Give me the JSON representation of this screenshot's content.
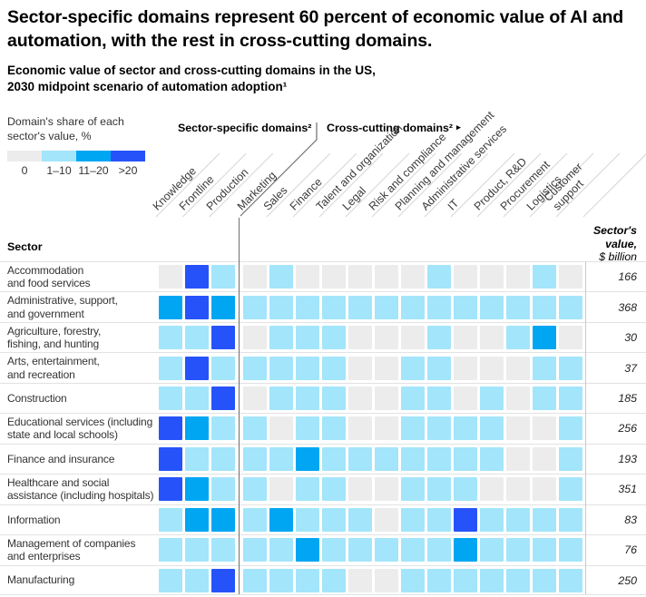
{
  "page": {
    "title_line1": "Sector-specific domains represent 60 percent of economic value of AI and",
    "title_line2": "automation, with the rest in cross-cutting domains.",
    "subtitle_line1": "Economic value of sector and cross-cutting domains in the US,",
    "subtitle_line2": "2030 midpoint scenario of automation adoption¹"
  },
  "legend": {
    "title": "Domain's share of each sector's value, %",
    "items": [
      {
        "label": "0",
        "color": "#ececec"
      },
      {
        "label": "1–10",
        "color": "#a3e5fb"
      },
      {
        "label": "11–20",
        "color": "#00a6f2"
      },
      {
        "label": ">20",
        "color": "#2653f9"
      }
    ]
  },
  "header": {
    "sector_specific_label": "Sector-specific domains²",
    "cross_cutting_label": "Cross-cutting domains²",
    "arrow": "▸"
  },
  "table_headers": {
    "sector": "Sector",
    "value_line1": "Sector's",
    "value_line2": "value,",
    "value_line3": "$ billion"
  },
  "chart_data": {
    "type": "heatmap",
    "title": "Economic value of sector and cross-cutting domains in the US, 2030 midpoint scenario of automation adoption",
    "value_buckets": [
      "0",
      "1–10",
      "11–20",
      ">20"
    ],
    "bucket_colors": [
      "#ececec",
      "#a3e5fb",
      "#00a6f2",
      "#2653f9"
    ],
    "column_groups": [
      {
        "name": "Sector-specific domains",
        "columns": [
          0,
          1,
          2
        ]
      },
      {
        "name": "Cross-cutting domains",
        "columns": [
          3,
          4,
          5,
          6,
          7,
          8,
          9,
          10,
          11,
          12,
          13,
          14,
          15
        ]
      }
    ],
    "x_categories": [
      "Knowledge",
      "Frontline",
      "Production",
      "Marketing",
      "Sales",
      "Finance",
      "Talent and organization",
      "Legal",
      "Risk and compliance",
      "Planning and management",
      "Administrative services",
      "IT",
      "Product, R&D",
      "Procurement",
      "Logistics",
      "Customer support"
    ],
    "value_axis_label": "Sector's value, $ billion",
    "rows": [
      {
        "sector": "Accommodation and food services",
        "label": "Accommodation\nand food services",
        "value": 166,
        "cells": [
          0,
          3,
          1,
          0,
          1,
          0,
          0,
          0,
          0,
          0,
          1,
          0,
          0,
          0,
          1,
          0
        ]
      },
      {
        "sector": "Administrative, support, and government",
        "label": "Administrative, support,\nand government",
        "value": 368,
        "cells": [
          2,
          3,
          2,
          1,
          1,
          1,
          1,
          1,
          1,
          1,
          1,
          1,
          1,
          1,
          1,
          1
        ]
      },
      {
        "sector": "Agriculture, forestry, fishing, and hunting",
        "label": "Agriculture, forestry,\nfishing, and hunting",
        "value": 30,
        "cells": [
          1,
          1,
          3,
          0,
          1,
          1,
          1,
          0,
          0,
          0,
          1,
          0,
          0,
          1,
          2,
          0
        ]
      },
      {
        "sector": "Arts, entertainment, and recreation",
        "label": "Arts, entertainment,\nand recreation",
        "value": 37,
        "cells": [
          1,
          3,
          1,
          1,
          1,
          1,
          1,
          0,
          0,
          1,
          1,
          0,
          0,
          0,
          1,
          1
        ]
      },
      {
        "sector": "Construction",
        "label": "Construction",
        "value": 185,
        "cells": [
          1,
          1,
          3,
          0,
          1,
          1,
          1,
          0,
          0,
          1,
          1,
          0,
          1,
          0,
          1,
          1
        ]
      },
      {
        "sector": "Educational services (including state and local schools)",
        "label": "Educational services (including\nstate and local schools)",
        "value": 256,
        "cells": [
          3,
          2,
          1,
          1,
          0,
          1,
          1,
          0,
          0,
          1,
          1,
          1,
          1,
          0,
          0,
          1
        ]
      },
      {
        "sector": "Finance and insurance",
        "label": "Finance and insurance",
        "value": 193,
        "cells": [
          3,
          1,
          1,
          1,
          1,
          2,
          1,
          1,
          1,
          1,
          1,
          1,
          1,
          0,
          0,
          1
        ]
      },
      {
        "sector": "Healthcare and social assistance (including hospitals)",
        "label": "Healthcare and social\nassistance (including hospitals)",
        "value": 351,
        "cells": [
          3,
          2,
          1,
          1,
          0,
          1,
          1,
          0,
          0,
          1,
          1,
          1,
          0,
          0,
          0,
          1
        ]
      },
      {
        "sector": "Information",
        "label": "Information",
        "value": 83,
        "cells": [
          1,
          2,
          2,
          1,
          2,
          1,
          1,
          1,
          0,
          1,
          1,
          3,
          1,
          1,
          1,
          1
        ]
      },
      {
        "sector": "Management of companies and enterprises",
        "label": "Management of companies\nand enterprises",
        "value": 76,
        "cells": [
          1,
          1,
          1,
          1,
          1,
          2,
          1,
          1,
          1,
          1,
          1,
          2,
          1,
          1,
          1,
          1
        ]
      },
      {
        "sector": "Manufacturing",
        "label": "Manufacturing",
        "value": 250,
        "cells": [
          1,
          1,
          3,
          1,
          1,
          1,
          1,
          0,
          0,
          1,
          1,
          1,
          1,
          1,
          1,
          1
        ]
      }
    ]
  }
}
